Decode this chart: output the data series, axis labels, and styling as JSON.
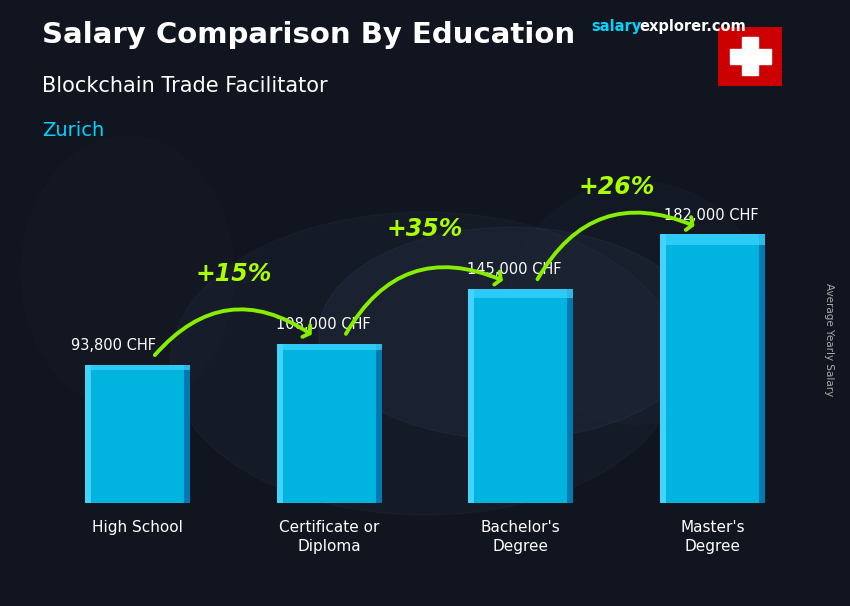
{
  "title_main": "Salary Comparison By Education",
  "title_sub": "Blockchain Trade Facilitator",
  "title_city": "Zurich",
  "ylabel": "Average Yearly Salary",
  "categories": [
    "High School",
    "Certificate or\nDiploma",
    "Bachelor's\nDegree",
    "Master's\nDegree"
  ],
  "values": [
    93800,
    108000,
    145000,
    182000
  ],
  "value_labels": [
    "93,800 CHF",
    "108,000 CHF",
    "145,000 CHF",
    "182,000 CHF"
  ],
  "pct_labels": [
    "+15%",
    "+35%",
    "+26%"
  ],
  "bar_color_main": "#00b4e0",
  "bar_color_light": "#40d4ff",
  "bar_color_dark": "#007ab0",
  "bar_shadow": "#005580",
  "background_color": "#1a1a2e",
  "title_color": "#ffffff",
  "subtitle_color": "#ffffff",
  "city_color": "#00d4ff",
  "value_label_color": "#ffffff",
  "pct_color": "#aaff00",
  "arrow_color": "#88ee00",
  "watermark_salary_color": "#00d4ff",
  "watermark_explorer_color": "#ffffff",
  "ylim": [
    0,
    230000
  ],
  "bar_width": 0.55,
  "photo_bg_alpha": 0.35
}
